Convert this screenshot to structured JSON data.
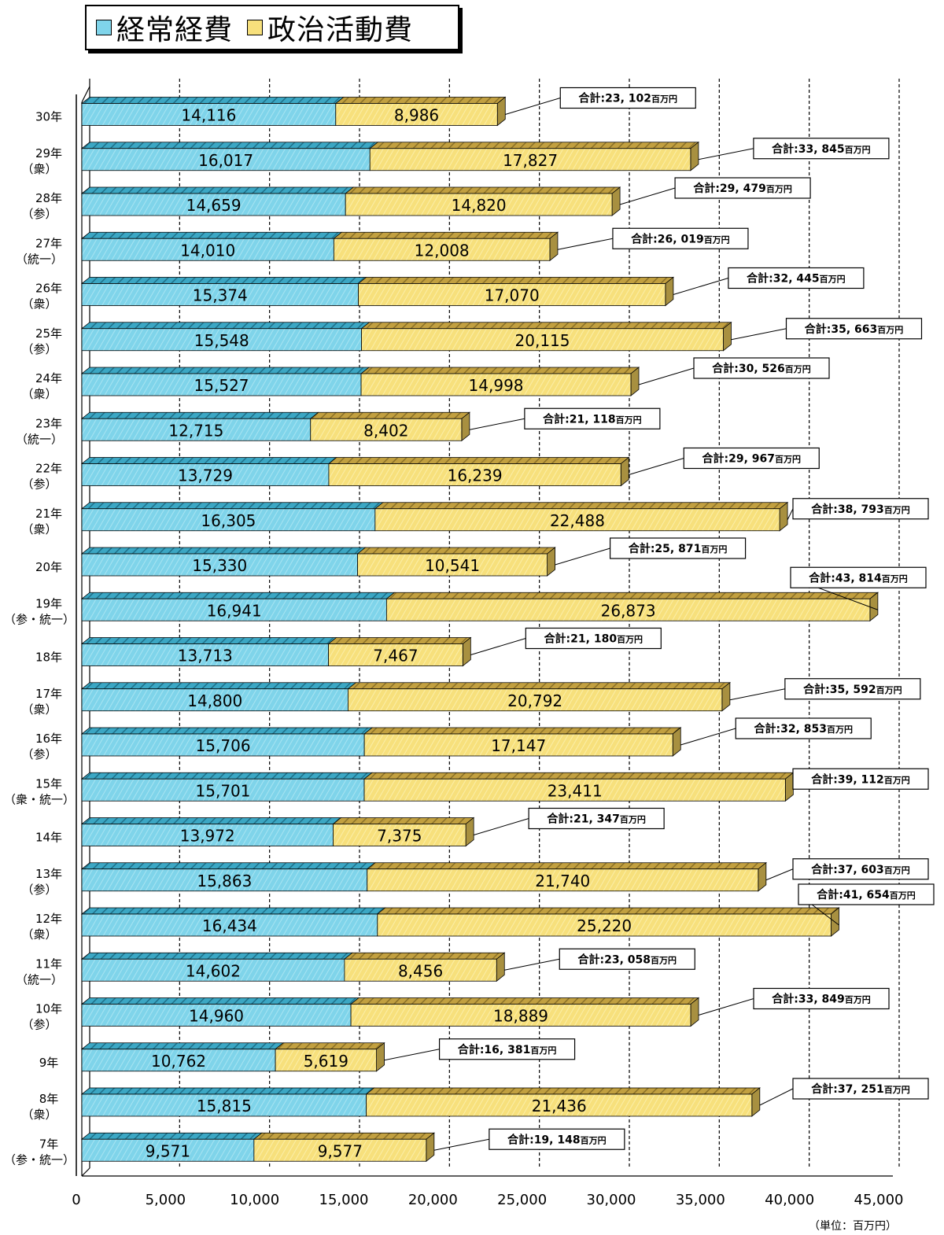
{
  "legend": {
    "regular": "経常経費",
    "political": "政治活動費"
  },
  "unit_label": "（単位：百万円）",
  "colors": {
    "regular": "#7fd4ea",
    "regular_top": "#3ba7c4",
    "political": "#f7e07c",
    "political_top": "#c2a040",
    "end_face": "#a89040"
  },
  "chart_data": {
    "type": "bar",
    "orientation": "horizontal",
    "stacked": true,
    "xlim": [
      0,
      45000
    ],
    "xticks": [
      "0",
      "5,000",
      "10,000",
      "15,000",
      "20,000",
      "25,000",
      "30,000",
      "35,000",
      "40,000",
      "45,000"
    ],
    "total_prefix": "合計:",
    "total_unit": "百万円",
    "categories": [
      {
        "year": "30年",
        "sub": ""
      },
      {
        "year": "29年",
        "sub": "（衆）"
      },
      {
        "year": "28年",
        "sub": "（参）"
      },
      {
        "year": "27年",
        "sub": "（統一）"
      },
      {
        "year": "26年",
        "sub": "（衆）"
      },
      {
        "year": "25年",
        "sub": "（参）"
      },
      {
        "year": "24年",
        "sub": "（衆）"
      },
      {
        "year": "23年",
        "sub": "（統一）"
      },
      {
        "year": "22年",
        "sub": "（参）"
      },
      {
        "year": "21年",
        "sub": "（衆）"
      },
      {
        "year": "20年",
        "sub": ""
      },
      {
        "year": "19年",
        "sub": "（参・統一）"
      },
      {
        "year": "18年",
        "sub": ""
      },
      {
        "year": "17年",
        "sub": "（衆）"
      },
      {
        "year": "16年",
        "sub": "（参）"
      },
      {
        "year": "15年",
        "sub": "（衆・統一）"
      },
      {
        "year": "14年",
        "sub": ""
      },
      {
        "year": "13年",
        "sub": "（参）"
      },
      {
        "year": "12年",
        "sub": "（衆）"
      },
      {
        "year": "11年",
        "sub": "（統一）"
      },
      {
        "year": "10年",
        "sub": "（参）"
      },
      {
        "year": "9年",
        "sub": ""
      },
      {
        "year": "8年",
        "sub": "（衆）"
      },
      {
        "year": "7年",
        "sub": "（参・統一）"
      }
    ],
    "series": [
      {
        "name": "経常経費",
        "values": [
          14116,
          16017,
          14659,
          14010,
          15374,
          15548,
          15527,
          12715,
          13729,
          16305,
          15330,
          16941,
          13713,
          14800,
          15706,
          15701,
          13972,
          15863,
          16434,
          14602,
          14960,
          10762,
          15815,
          9571
        ],
        "labels": [
          "14,116",
          "16,017",
          "14,659",
          "14,010",
          "15,374",
          "15,548",
          "15,527",
          "12,715",
          "13,729",
          "16,305",
          "15,330",
          "16,941",
          "13,713",
          "14,800",
          "15,706",
          "15,701",
          "13,972",
          "15,863",
          "16,434",
          "14,602",
          "14,960",
          "10,762",
          "15,815",
          "9,571"
        ]
      },
      {
        "name": "政治活動費",
        "values": [
          8986,
          17827,
          14820,
          12008,
          17070,
          20115,
          14998,
          8402,
          16239,
          22488,
          10541,
          26873,
          7467,
          20792,
          17147,
          23411,
          7375,
          21740,
          25220,
          8456,
          18889,
          5619,
          21436,
          9577
        ],
        "labels": [
          "8,986",
          "17,827",
          "14,820",
          "12,008",
          "17,070",
          "20,115",
          "14,998",
          "8,402",
          "16,239",
          "22,488",
          "10,541",
          "26,873",
          "7,467",
          "20,792",
          "17,147",
          "23,411",
          "7,375",
          "21,740",
          "25,220",
          "8,456",
          "18,889",
          "5,619",
          "21,436",
          "9,577"
        ]
      }
    ],
    "totals": [
      23102,
      33845,
      29479,
      26019,
      32445,
      35663,
      30526,
      21118,
      29967,
      38793,
      25871,
      43814,
      21180,
      35592,
      32853,
      39112,
      21347,
      37603,
      41654,
      23058,
      33849,
      16381,
      37251,
      19148
    ],
    "total_labels": [
      "23, 102",
      "33, 845",
      "29, 479",
      "26, 019",
      "32, 445",
      "35, 663",
      "30, 526",
      "21, 118",
      "29, 967",
      "38, 793",
      "25, 871",
      "43, 814",
      "21, 180",
      "35, 592",
      "32, 853",
      "39, 112",
      "21, 347",
      "37, 603",
      "41, 654",
      "23, 058",
      "33, 849",
      "16, 381",
      "37, 251",
      "19, 148"
    ]
  }
}
